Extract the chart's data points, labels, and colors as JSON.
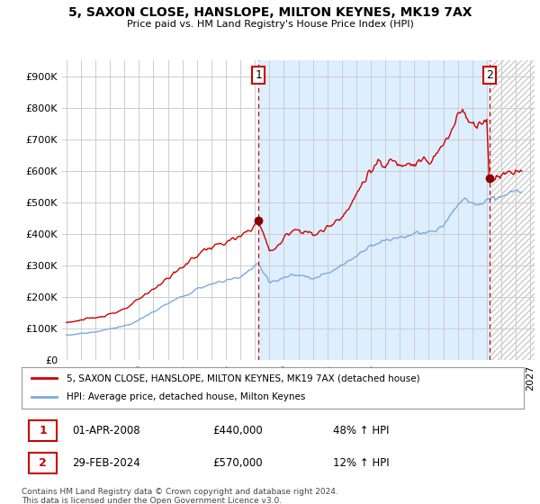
{
  "title": "5, SAXON CLOSE, HANSLOPE, MILTON KEYNES, MK19 7AX",
  "subtitle": "Price paid vs. HM Land Registry's House Price Index (HPI)",
  "sale1_date": "01-APR-2008",
  "sale1_price": 440000,
  "sale1_hpi_pct": "48% ↑ HPI",
  "sale2_date": "29-FEB-2024",
  "sale2_price": 570000,
  "sale2_hpi_pct": "12% ↑ HPI",
  "legend_line1": "5, SAXON CLOSE, HANSLOPE, MILTON KEYNES, MK19 7AX (detached house)",
  "legend_line2": "HPI: Average price, detached house, Milton Keynes",
  "footnote": "Contains HM Land Registry data © Crown copyright and database right 2024.\nThis data is licensed under the Open Government Licence v3.0.",
  "line1_color": "#cc0000",
  "line2_color": "#7aaadd",
  "vline_color": "#cc0000",
  "shading_color": "#ddeeff",
  "background_color": "#ffffff",
  "grid_color": "#cccccc",
  "hatch_color": "#cccccc",
  "ylim": [
    0,
    950000
  ],
  "yticks": [
    0,
    100000,
    200000,
    300000,
    400000,
    500000,
    600000,
    700000,
    800000,
    900000
  ],
  "xlim_start": 1994.7,
  "xlim_end": 2027.3,
  "t_sale1": 2008.25,
  "t_sale2": 2024.17,
  "hatch_region_start": 2024.17,
  "hatch_region_end": 2027.3
}
